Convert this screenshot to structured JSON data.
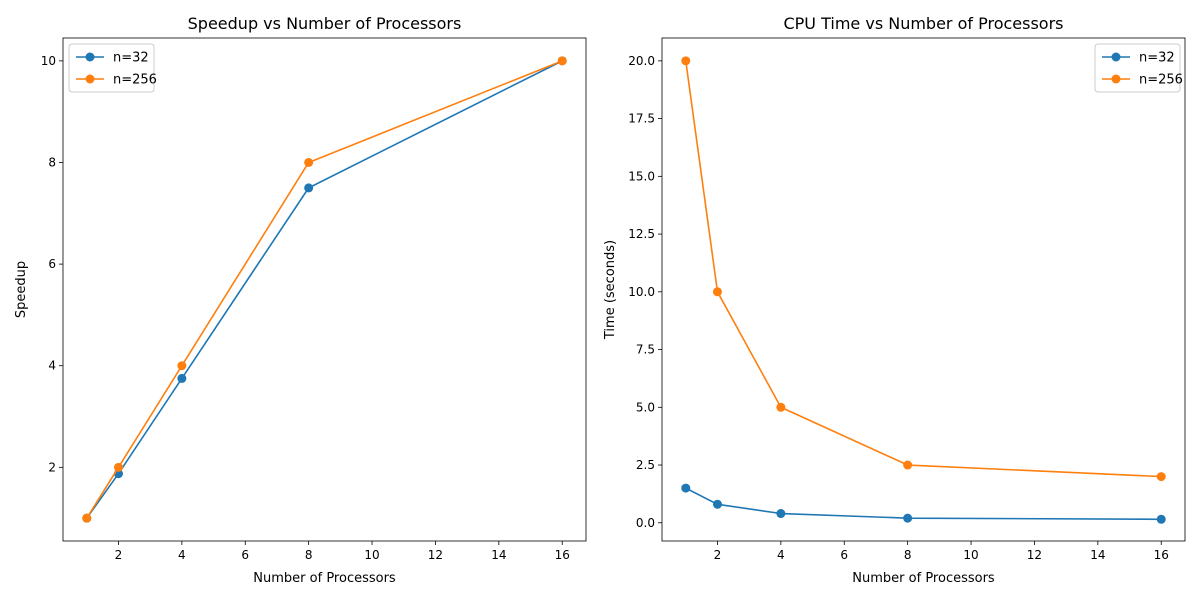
{
  "colors": {
    "series_1": "#1f77b4",
    "series_2": "#ff7f0e"
  },
  "chart_data": [
    {
      "type": "line",
      "title": "Speedup vs Number of Processors",
      "xlabel": "Number of Processors",
      "ylabel": "Speedup",
      "xlim": [
        0.25,
        16.75
      ],
      "ylim": [
        0.55,
        10.45
      ],
      "xticks": [
        2,
        4,
        6,
        8,
        10,
        12,
        14,
        16
      ],
      "yticks": [
        2,
        4,
        6,
        8,
        10
      ],
      "ytick_labels": [
        "2",
        "4",
        "6",
        "8",
        "10"
      ],
      "grid": false,
      "legend": "top-left",
      "x": [
        1,
        2,
        4,
        8,
        16
      ],
      "series": [
        {
          "name": "n=32",
          "values": [
            1,
            1.875,
            3.75,
            7.5,
            10
          ]
        },
        {
          "name": "n=256",
          "values": [
            1,
            2,
            4,
            8,
            10
          ]
        }
      ]
    },
    {
      "type": "line",
      "title": "CPU Time vs Number of Processors",
      "xlabel": "Number of Processors",
      "ylabel": "Time (seconds)",
      "xlim": [
        0.25,
        16.75
      ],
      "ylim": [
        -0.79,
        20.99
      ],
      "xticks": [
        2,
        4,
        6,
        8,
        10,
        12,
        14,
        16
      ],
      "yticks": [
        0,
        2.5,
        5,
        7.5,
        10,
        12.5,
        15,
        17.5,
        20
      ],
      "ytick_labels": [
        "0.0",
        "2.5",
        "5.0",
        "7.5",
        "10.0",
        "12.5",
        "15.0",
        "17.5",
        "20.0"
      ],
      "grid": false,
      "legend": "top-right",
      "x": [
        1,
        2,
        4,
        8,
        16
      ],
      "series": [
        {
          "name": "n=32",
          "values": [
            1.5,
            0.8,
            0.4,
            0.2,
            0.15
          ]
        },
        {
          "name": "n=256",
          "values": [
            20,
            10,
            5,
            2.5,
            2
          ]
        }
      ]
    }
  ]
}
